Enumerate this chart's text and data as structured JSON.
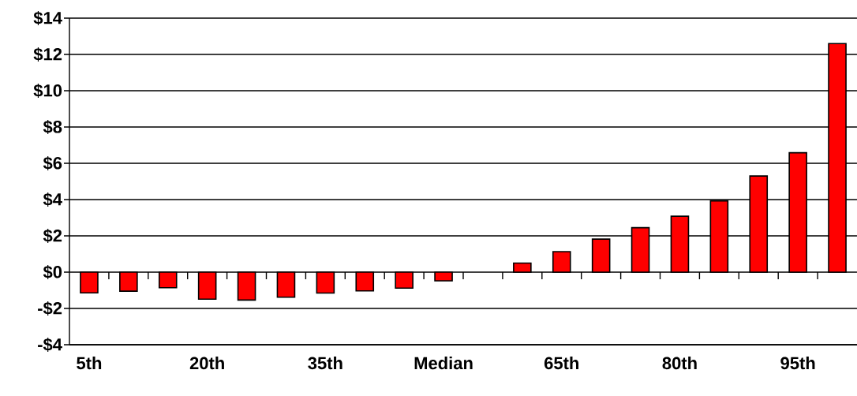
{
  "chart_data": {
    "type": "bar",
    "categories": [
      "5th",
      null,
      null,
      "20th",
      null,
      null,
      "35th",
      null,
      null,
      "Median",
      null,
      null,
      "65th",
      null,
      null,
      "80th",
      null,
      null,
      "95th",
      null
    ],
    "values": [
      -1.14,
      -1.05,
      -0.86,
      -1.49,
      -1.54,
      -1.38,
      -1.15,
      -1.03,
      -0.88,
      -0.48,
      null,
      0.5,
      1.13,
      1.82,
      2.45,
      3.08,
      3.93,
      5.3,
      6.58,
      12.6
    ],
    "color": "#ff0000",
    "ylim": [
      -4,
      14
    ],
    "yticks": [
      {
        "value": -4,
        "label": "-$4"
      },
      {
        "value": -2,
        "label": "-$2"
      },
      {
        "value": 0,
        "label": "$0"
      },
      {
        "value": 2,
        "label": "$2"
      },
      {
        "value": 4,
        "label": "$4"
      },
      {
        "value": 6,
        "label": "$6"
      },
      {
        "value": 8,
        "label": "$8"
      },
      {
        "value": 10,
        "label": "$10"
      },
      {
        "value": 12,
        "label": "$12"
      },
      {
        "value": 14,
        "label": "$14"
      }
    ],
    "grid": "y"
  }
}
